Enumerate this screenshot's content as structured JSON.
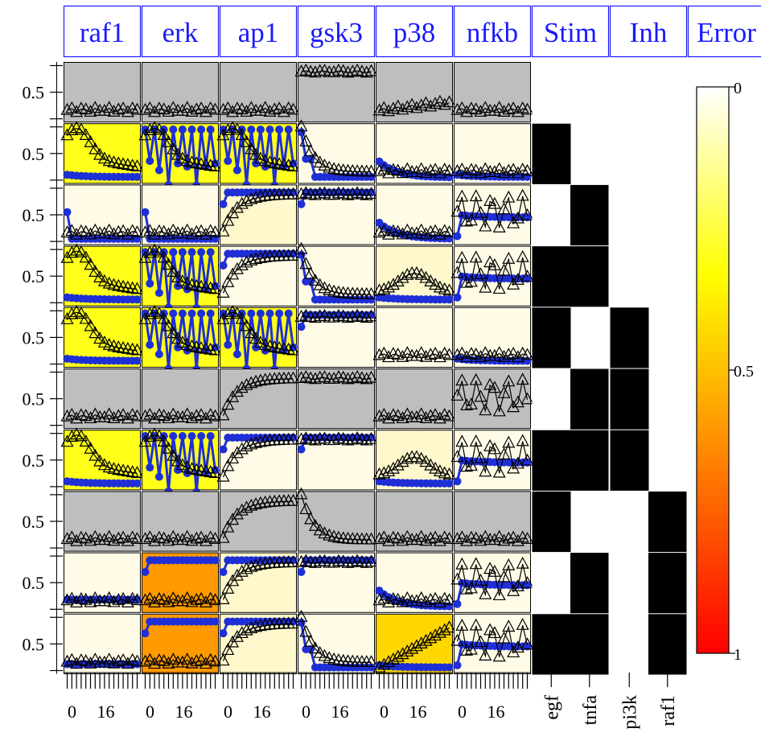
{
  "chart_data": {
    "type": "heatmap",
    "readout_columns": [
      "raf1",
      "erk",
      "ap1",
      "gsk3",
      "p38",
      "nfkb"
    ],
    "design_headers": [
      "Stim",
      "Inh"
    ],
    "error_header": "Error",
    "y_tick_label": "0.5",
    "x_tick_labels": [
      "0",
      "16"
    ],
    "stimuli": [
      "egf",
      "tnfa"
    ],
    "inhibitors": [
      "pi3k",
      "raf1"
    ],
    "colorbar": {
      "ticks": [
        "0",
        "0.5",
        "1"
      ],
      "colors": [
        "#ffffff",
        "#ffff00",
        "#ff8000",
        "#ff0000"
      ]
    },
    "colors": {
      "header_text": "#1a1aff",
      "header_border": "#1a1aff",
      "simulation": "#1f2fd6",
      "data": "#000000",
      "no_data": "#bebebe",
      "low_error": "#fffbe6",
      "pale_error": "#fff8cc",
      "mid_error": "#ffff1a",
      "gold_error": "#ffd700",
      "orange_error": "#ff9a00"
    },
    "rows": [
      {
        "stim": [
          0,
          0
        ],
        "inh": [
          0,
          0
        ],
        "cells": [
          {
            "bg": "no_data",
            "sim": "none",
            "data": "low"
          },
          {
            "bg": "no_data",
            "sim": "none",
            "data": "low"
          },
          {
            "bg": "no_data",
            "sim": "none",
            "data": "low"
          },
          {
            "bg": "no_data",
            "sim": "none",
            "data": "high"
          },
          {
            "bg": "no_data",
            "sim": "none",
            "data": "low_rise"
          },
          {
            "bg": "no_data",
            "sim": "none",
            "data": "low"
          }
        ]
      },
      {
        "stim": [
          1,
          0
        ],
        "inh": [
          0,
          0
        ],
        "cells": [
          {
            "bg": "mid_error",
            "sim": "low",
            "data": "transient"
          },
          {
            "bg": "mid_error",
            "sim": "oscillating",
            "data": "transient"
          },
          {
            "bg": "mid_error",
            "sim": "oscillating",
            "data": "transient"
          },
          {
            "bg": "low_error",
            "sim": "drop",
            "data": "drop"
          },
          {
            "bg": "low_error",
            "sim": "decline",
            "data": "low"
          },
          {
            "bg": "low_error",
            "sim": "low",
            "data": "low"
          }
        ]
      },
      {
        "stim": [
          0,
          1
        ],
        "inh": [
          0,
          0
        ],
        "cells": [
          {
            "bg": "low_error",
            "sim": "spike_low",
            "data": "low"
          },
          {
            "bg": "low_error",
            "sim": "spike_low",
            "data": "low"
          },
          {
            "bg": "pale_error",
            "sim": "high",
            "data": "rise"
          },
          {
            "bg": "low_error",
            "sim": "high",
            "data": "high"
          },
          {
            "bg": "low_error",
            "sim": "decline",
            "data": "low"
          },
          {
            "bg": "low_error",
            "sim": "jump_mid",
            "data": "noisy_mid"
          }
        ]
      },
      {
        "stim": [
          1,
          1
        ],
        "inh": [
          0,
          0
        ],
        "cells": [
          {
            "bg": "mid_error",
            "sim": "low",
            "data": "transient"
          },
          {
            "bg": "mid_error",
            "sim": "oscillating",
            "data": "transient"
          },
          {
            "bg": "low_error",
            "sim": "high",
            "data": "rise"
          },
          {
            "bg": "low_error",
            "sim": "drop",
            "data": "drop"
          },
          {
            "bg": "pale_error",
            "sim": "low",
            "data": "bump"
          },
          {
            "bg": "low_error",
            "sim": "jump_mid",
            "data": "noisy_mid"
          }
        ]
      },
      {
        "stim": [
          1,
          0
        ],
        "inh": [
          1,
          0
        ],
        "cells": [
          {
            "bg": "mid_error",
            "sim": "low",
            "data": "transient"
          },
          {
            "bg": "mid_error",
            "sim": "oscillating",
            "data": "transient"
          },
          {
            "bg": "mid_error",
            "sim": "oscillating",
            "data": "transient"
          },
          {
            "bg": "low_error",
            "sim": "high",
            "data": "high"
          },
          {
            "bg": "low_error",
            "sim": "none",
            "data": "low"
          },
          {
            "bg": "low_error",
            "sim": "low",
            "data": "low"
          }
        ]
      },
      {
        "stim": [
          0,
          1
        ],
        "inh": [
          1,
          0
        ],
        "cells": [
          {
            "bg": "no_data",
            "sim": "none",
            "data": "low"
          },
          {
            "bg": "no_data",
            "sim": "none",
            "data": "low"
          },
          {
            "bg": "no_data",
            "sim": "none",
            "data": "rise"
          },
          {
            "bg": "no_data",
            "sim": "none",
            "data": "high"
          },
          {
            "bg": "no_data",
            "sim": "none",
            "data": "low"
          },
          {
            "bg": "no_data",
            "sim": "none",
            "data": "noisy_mid"
          }
        ]
      },
      {
        "stim": [
          1,
          1
        ],
        "inh": [
          1,
          0
        ],
        "cells": [
          {
            "bg": "mid_error",
            "sim": "low",
            "data": "transient"
          },
          {
            "bg": "mid_error",
            "sim": "oscillating",
            "data": "transient"
          },
          {
            "bg": "low_error",
            "sim": "high",
            "data": "rise"
          },
          {
            "bg": "low_error",
            "sim": "high",
            "data": "high"
          },
          {
            "bg": "pale_error",
            "sim": "low",
            "data": "bump"
          },
          {
            "bg": "low_error",
            "sim": "jump_mid",
            "data": "noisy_mid"
          }
        ]
      },
      {
        "stim": [
          1,
          0
        ],
        "inh": [
          0,
          1
        ],
        "cells": [
          {
            "bg": "no_data",
            "sim": "none",
            "data": "low"
          },
          {
            "bg": "no_data",
            "sim": "none",
            "data": "low"
          },
          {
            "bg": "no_data",
            "sim": "none",
            "data": "rise"
          },
          {
            "bg": "no_data",
            "sim": "none",
            "data": "drop"
          },
          {
            "bg": "no_data",
            "sim": "none",
            "data": "low"
          },
          {
            "bg": "no_data",
            "sim": "none",
            "data": "low"
          }
        ]
      },
      {
        "stim": [
          0,
          1
        ],
        "inh": [
          0,
          1
        ],
        "cells": [
          {
            "bg": "low_error",
            "sim": "flat_low",
            "data": "low"
          },
          {
            "bg": "orange_error",
            "sim": "high",
            "data": "low"
          },
          {
            "bg": "pale_error",
            "sim": "high",
            "data": "rise"
          },
          {
            "bg": "low_error",
            "sim": "high",
            "data": "high"
          },
          {
            "bg": "low_error",
            "sim": "decline",
            "data": "low"
          },
          {
            "bg": "low_error",
            "sim": "jump_mid",
            "data": "noisy_mid"
          }
        ]
      },
      {
        "stim": [
          1,
          1
        ],
        "inh": [
          0,
          1
        ],
        "cells": [
          {
            "bg": "low_error",
            "sim": "flat_vlow",
            "data": "low"
          },
          {
            "bg": "orange_error",
            "sim": "high",
            "data": "low"
          },
          {
            "bg": "pale_error",
            "sim": "high",
            "data": "rise"
          },
          {
            "bg": "low_error",
            "sim": "drop",
            "data": "drop"
          },
          {
            "bg": "gold_error",
            "sim": "low",
            "data": "rise_late"
          },
          {
            "bg": "low_error",
            "sim": "jump_mid",
            "data": "noisy_mid"
          }
        ]
      }
    ]
  }
}
